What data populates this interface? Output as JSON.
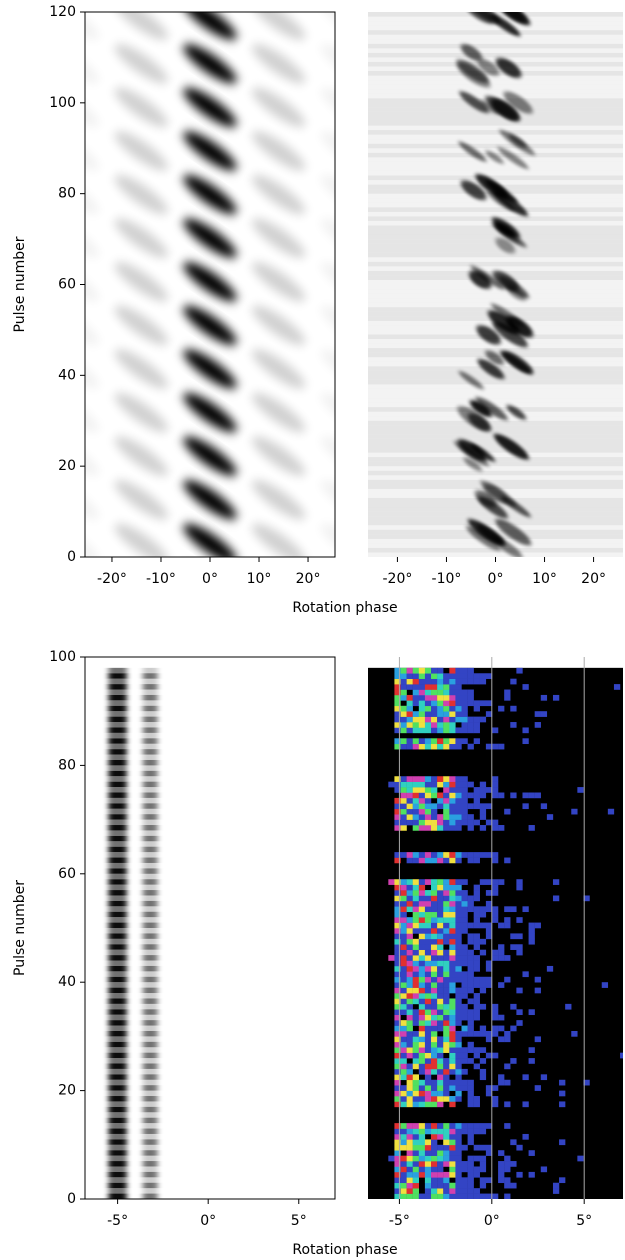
{
  "chart_data": [
    {
      "type": "heatmap",
      "colormap": "gray",
      "x_label": "Rotation phase",
      "y_label": "Pulse number",
      "xlim": [
        -25.5,
        25.5
      ],
      "xticks": [
        {
          "value": -20,
          "label": "-20°"
        },
        {
          "value": -10,
          "label": "-10°"
        },
        {
          "value": 0,
          "label": "0°"
        },
        {
          "value": 10,
          "label": "10°"
        },
        {
          "value": 20,
          "label": "20°"
        }
      ],
      "ylim": [
        0,
        120
      ],
      "yticks": [
        0,
        20,
        40,
        60,
        80,
        100,
        120
      ]
    },
    {
      "type": "heatmap",
      "colormap": "gray",
      "xlim": [
        -26,
        26
      ],
      "xticks": [
        {
          "value": -20,
          "label": "-20°"
        },
        {
          "value": -10,
          "label": "-10°"
        },
        {
          "value": 0,
          "label": "0°"
        },
        {
          "value": 10,
          "label": "10°"
        },
        {
          "value": 20,
          "label": "20°"
        }
      ],
      "ylim": [
        0,
        120
      ]
    },
    {
      "type": "heatmap",
      "colormap": "gray",
      "x_label": "Rotation phase",
      "y_label": "Pulse number",
      "xlim": [
        -6.8,
        7.0
      ],
      "xticks": [
        {
          "value": -5,
          "label": "-5°"
        },
        {
          "value": 0,
          "label": "0°"
        },
        {
          "value": 5,
          "label": "5°"
        }
      ],
      "ylim": [
        0,
        100
      ],
      "yticks": [
        0,
        20,
        40,
        60,
        80,
        100
      ]
    },
    {
      "type": "heatmap",
      "colormap": "jet",
      "grid": true,
      "xlim": [
        -6.7,
        7.1
      ],
      "xticks": [
        {
          "value": -5,
          "label": "-5°"
        },
        {
          "value": 0,
          "label": "0°"
        },
        {
          "value": 5,
          "label": "5°"
        }
      ],
      "ylim": [
        0,
        100
      ]
    }
  ]
}
